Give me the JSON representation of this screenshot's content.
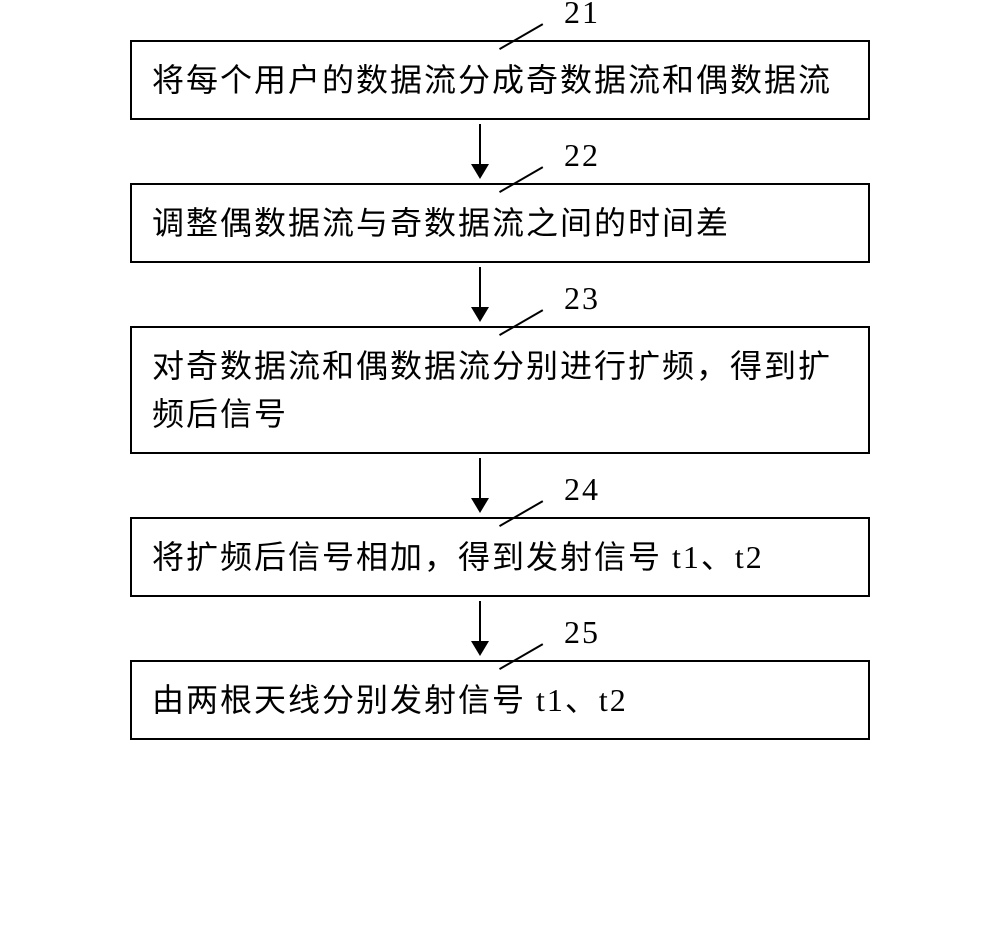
{
  "flowchart": {
    "type": "flowchart",
    "direction": "vertical",
    "background_color": "#ffffff",
    "border_color": "#000000",
    "border_width": 2,
    "text_color": "#000000",
    "font_size": 32,
    "font_family": "SimSun",
    "arrow_color": "#000000",
    "arrow_line_height": 42,
    "arrow_head_size": 15,
    "nodes": [
      {
        "id": "step1",
        "label": "21",
        "text": "将每个用户的数据流分成奇数据流和偶数据流"
      },
      {
        "id": "step2",
        "label": "22",
        "text": "调整偶数据流与奇数据流之间的时间差"
      },
      {
        "id": "step3",
        "label": "23",
        "text": "对奇数据流和偶数据流分别进行扩频，得到扩频后信号"
      },
      {
        "id": "step4",
        "label": "24",
        "text": "将扩频后信号相加，得到发射信号 t1、t2"
      },
      {
        "id": "step5",
        "label": "25",
        "text": "由两根天线分别发射信号 t1、t2"
      }
    ],
    "edges": [
      {
        "from": "step1",
        "to": "step2"
      },
      {
        "from": "step2",
        "to": "step3"
      },
      {
        "from": "step3",
        "to": "step4"
      },
      {
        "from": "step4",
        "to": "step5"
      }
    ]
  }
}
